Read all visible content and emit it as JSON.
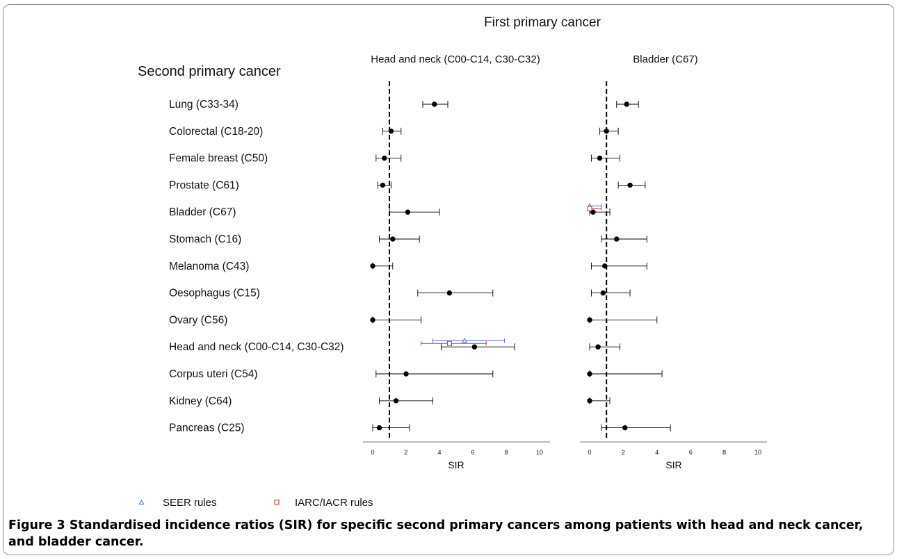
{
  "figure": {
    "header": "First primary cancer",
    "row_header": "Second primary cancer",
    "caption_label": "Figure 3",
    "caption_text": "Standardised incidence ratios (SIR) for specific second primary cancers  among patients with head and neck cancer, and bladder cancer."
  },
  "legend": {
    "seer": "SEER rules",
    "iarc": "IARC/IACR rules"
  },
  "colors": {
    "main": "#000000",
    "seer": "#4a6fbf",
    "iarc": "#c0392b"
  },
  "chart_data": [
    {
      "type": "forest",
      "title": "Head and neck (C00-C14, C30-C32)",
      "xlabel": "SIR",
      "xlim": [
        0,
        10
      ],
      "xticks": [
        0,
        2,
        4,
        6,
        8,
        10
      ],
      "reference_line": 1,
      "categories": [
        "Lung (C33-34)",
        "Colorectal (C18-20)",
        "Female breast (C50)",
        "Prostate (C61)",
        "Bladder (C67)",
        "Stomach (C16)",
        "Melanoma (C43)",
        "Oesophagus (C15)",
        "Ovary (C56)",
        "Head and neck (C00-C14, C30-C32)",
        "Corpus uteri (C54)",
        "Kidney (C64)",
        "Pancreas (C25)"
      ],
      "series": [
        {
          "name": "",
          "points": [
            {
              "category": "Lung (C33-34)",
              "sir": 3.7,
              "low": 3.0,
              "high": 4.5
            },
            {
              "category": "Colorectal (C18-20)",
              "sir": 1.1,
              "low": 0.6,
              "high": 1.7
            },
            {
              "category": "Female breast (C50)",
              "sir": 0.7,
              "low": 0.2,
              "high": 1.7
            },
            {
              "category": "Prostate (C61)",
              "sir": 0.6,
              "low": 0.3,
              "high": 1.1
            },
            {
              "category": "Bladder (C67)",
              "sir": 2.1,
              "low": 1.0,
              "high": 4.0
            },
            {
              "category": "Stomach (C16)",
              "sir": 1.2,
              "low": 0.4,
              "high": 2.8
            },
            {
              "category": "Melanoma (C43)",
              "sir": 0.0,
              "low": 0.0,
              "high": 1.2
            },
            {
              "category": "Oesophagus (C15)",
              "sir": 4.6,
              "low": 2.7,
              "high": 7.2
            },
            {
              "category": "Ovary (C56)",
              "sir": 0.0,
              "low": 0.0,
              "high": 2.9
            },
            {
              "category": "Head and neck (C00-C14, C30-C32)",
              "sir": 6.1,
              "low": 4.1,
              "high": 8.5
            },
            {
              "category": "Corpus uteri (C54)",
              "sir": 2.0,
              "low": 0.2,
              "high": 7.2
            },
            {
              "category": "Kidney (C64)",
              "sir": 1.4,
              "low": 0.4,
              "high": 3.6
            },
            {
              "category": "Pancreas (C25)",
              "sir": 0.4,
              "low": 0.0,
              "high": 2.2
            }
          ]
        },
        {
          "name": "SEER rules",
          "points": [
            {
              "category": "Head and neck (C00-C14, C30-C32)",
              "sir": 5.5,
              "low": 3.6,
              "high": 7.9
            }
          ]
        },
        {
          "name": "IARC/IACR rules",
          "points": [
            {
              "category": "Head and neck (C00-C14, C30-C32)",
              "sir": 4.6,
              "low": 2.9,
              "high": 6.8
            }
          ]
        }
      ]
    },
    {
      "type": "forest",
      "title": "Bladder (C67)",
      "xlabel": "SIR",
      "xlim": [
        0,
        10
      ],
      "xticks": [
        0,
        2,
        4,
        6,
        8,
        10
      ],
      "reference_line": 1,
      "categories": [
        "Lung (C33-34)",
        "Colorectal (C18-20)",
        "Female breast (C50)",
        "Prostate (C61)",
        "Bladder (C67)",
        "Stomach (C16)",
        "Melanoma (C43)",
        "Oesophagus (C15)",
        "Ovary (C56)",
        "Head and neck (C00-C14, C30-C32)",
        "Corpus uteri (C54)",
        "Kidney (C64)",
        "Pancreas (C25)"
      ],
      "series": [
        {
          "name": "",
          "points": [
            {
              "category": "Lung (C33-34)",
              "sir": 2.2,
              "low": 1.6,
              "high": 2.9
            },
            {
              "category": "Colorectal (C18-20)",
              "sir": 1.0,
              "low": 0.6,
              "high": 1.7
            },
            {
              "category": "Female breast (C50)",
              "sir": 0.6,
              "low": 0.1,
              "high": 1.8
            },
            {
              "category": "Prostate (C61)",
              "sir": 2.4,
              "low": 1.7,
              "high": 3.3
            },
            {
              "category": "Bladder (C67)",
              "sir": 0.2,
              "low": 0.0,
              "high": 1.2
            },
            {
              "category": "Stomach (C16)",
              "sir": 1.6,
              "low": 0.7,
              "high": 3.4
            },
            {
              "category": "Melanoma (C43)",
              "sir": 0.9,
              "low": 0.1,
              "high": 3.4
            },
            {
              "category": "Oesophagus (C15)",
              "sir": 0.8,
              "low": 0.1,
              "high": 2.4
            },
            {
              "category": "Ovary (C56)",
              "sir": 0.0,
              "low": 0.0,
              "high": 4.0
            },
            {
              "category": "Head and neck (C00-C14, C30-C32)",
              "sir": 0.5,
              "low": 0.0,
              "high": 1.8
            },
            {
              "category": "Corpus uteri (C54)",
              "sir": 0.0,
              "low": 0.0,
              "high": 4.3
            },
            {
              "category": "Kidney (C64)",
              "sir": 0.0,
              "low": 0.0,
              "high": 1.2
            },
            {
              "category": "Pancreas (C25)",
              "sir": 2.1,
              "low": 0.7,
              "high": 4.8
            }
          ]
        },
        {
          "name": "SEER rules",
          "points": [
            {
              "category": "Bladder (C67)",
              "sir": 0.0,
              "low": 0.0,
              "high": 0.7
            }
          ]
        },
        {
          "name": "IARC/IACR rules",
          "points": [
            {
              "category": "Bladder (C67)",
              "sir": 0.0,
              "low": 0.0,
              "high": 0.7
            }
          ]
        }
      ]
    }
  ]
}
